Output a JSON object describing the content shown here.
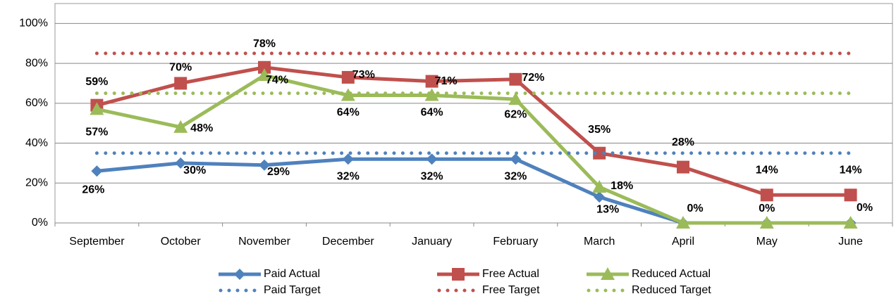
{
  "chart_data": {
    "type": "line",
    "categories": [
      "September",
      "October",
      "November",
      "December",
      "January",
      "February",
      "March",
      "April",
      "May",
      "June"
    ],
    "series": [
      {
        "name": "Paid Actual",
        "color": "#4f81bd",
        "marker": "diamond",
        "style": "solid",
        "values": [
          26,
          30,
          29,
          32,
          32,
          32,
          13,
          0,
          0,
          0
        ],
        "value_labels": [
          "26%",
          "30%",
          "29%",
          "32%",
          "32%",
          "32%",
          "13%",
          null,
          null,
          null
        ]
      },
      {
        "name": "Free Actual",
        "color": "#c0504d",
        "marker": "square",
        "style": "solid",
        "values": [
          59,
          70,
          78,
          73,
          71,
          72,
          35,
          28,
          14,
          14
        ],
        "value_labels": [
          "59%",
          "70%",
          "78%",
          "73%",
          "71%",
          "72%",
          "35%",
          "28%",
          "14%",
          "14%"
        ]
      },
      {
        "name": "Reduced Actual",
        "color": "#9bbb59",
        "marker": "triangle",
        "style": "solid",
        "values": [
          57,
          48,
          74,
          64,
          64,
          62,
          18,
          0,
          0,
          0
        ],
        "value_labels": [
          "57%",
          "48%",
          "74%",
          "64%",
          "64%",
          "62%",
          "18%",
          "0%",
          "0%",
          "0%"
        ]
      },
      {
        "name": "Paid Target",
        "color": "#4f81bd",
        "style": "dotted",
        "values": [
          35,
          35,
          35,
          35,
          35,
          35,
          35,
          35,
          35,
          35
        ]
      },
      {
        "name": "Free Target",
        "color": "#c0504d",
        "style": "dotted",
        "values": [
          85,
          85,
          85,
          85,
          85,
          85,
          85,
          85,
          85,
          85
        ]
      },
      {
        "name": "Reduced Target",
        "color": "#9bbb59",
        "style": "dotted",
        "values": [
          65,
          65,
          65,
          65,
          65,
          65,
          65,
          65,
          65,
          65
        ]
      }
    ],
    "ylim": [
      0,
      110
    ],
    "yticks": [
      {
        "value": 0,
        "label": "0%"
      },
      {
        "value": 20,
        "label": "20%"
      },
      {
        "value": 40,
        "label": "40%"
      },
      {
        "value": 60,
        "label": "60%"
      },
      {
        "value": 80,
        "label": "80%"
      },
      {
        "value": 100,
        "label": "100%"
      }
    ],
    "grid": true,
    "legend": "bottom"
  }
}
